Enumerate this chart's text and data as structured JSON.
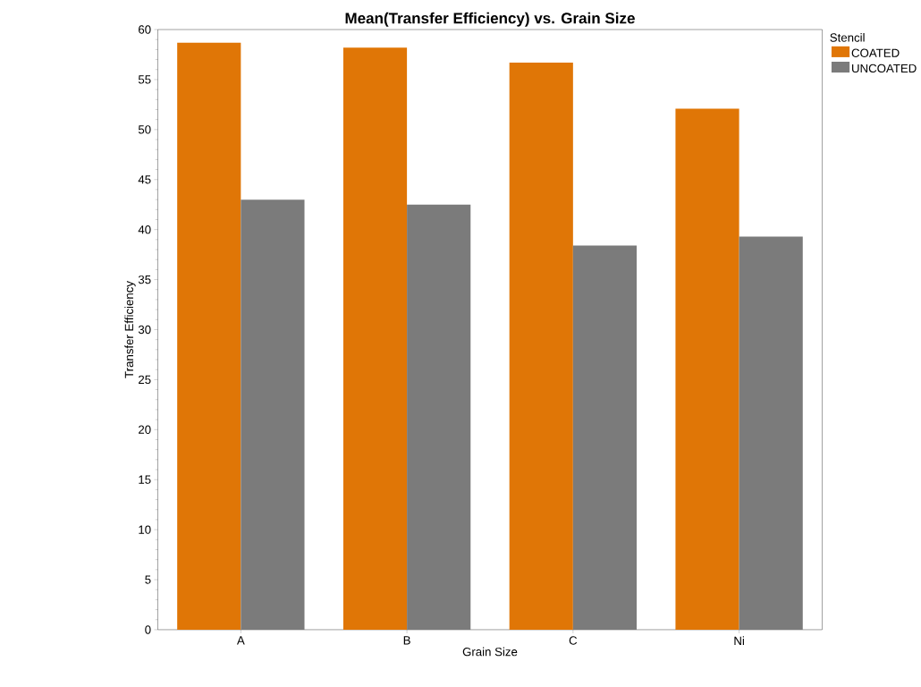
{
  "chart_data": {
    "type": "bar",
    "title": "Mean(Transfer Efficiency) vs. Grain Size",
    "xlabel": "Grain Size",
    "ylabel": "Transfer Efficiency",
    "legend_title": "Stencil",
    "categories": [
      "A",
      "B",
      "C",
      "Ni"
    ],
    "series": [
      {
        "name": "COATED",
        "color": "#e07606",
        "values": [
          58.7,
          58.2,
          56.7,
          52.1
        ]
      },
      {
        "name": "UNCOATED",
        "color": "#7b7b7b",
        "values": [
          43.0,
          42.5,
          38.4,
          39.3
        ]
      }
    ],
    "ylim": [
      0,
      60
    ],
    "yticks": [
      0,
      5,
      10,
      15,
      20,
      25,
      30,
      35,
      40,
      45,
      50,
      55,
      60
    ],
    "grid": false,
    "legend": "right"
  }
}
